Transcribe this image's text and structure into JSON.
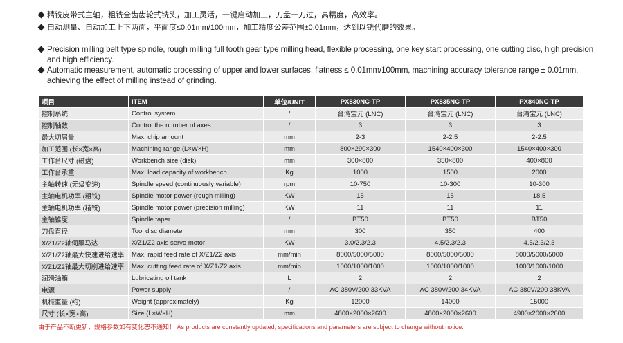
{
  "bullets_cn": [
    "精铣皮带式主轴，粗铣全齿齿轮式铣头，加工灵活，一键启动加工，刀盘一刀过，高精度，高效率。",
    "自动测量、自动加工上下两面，平面度≤0.01mm/100mm，加工精度公差范围±0.01mm，达到以铣代磨的效果。"
  ],
  "bullets_en": [
    "Precision milling belt type spindle, rough milling full tooth gear type milling head, flexible processing, one key start processing, one cutting disc, high precision and high efficiency.",
    "Automatic measurement, automatic processing of upper and lower surfaces, flatness ≤ 0.01mm/100mm, machining accuracy tolerance range ± 0.01mm, achieving the effect of milling instead of grinding."
  ],
  "table": {
    "header": [
      "项目",
      "ITEM",
      "单位/UNIT",
      "PX830NC-TP",
      "PX835NC-TP",
      "PX840NC-TP"
    ],
    "rows": [
      [
        "控制系统",
        "Control system",
        "/",
        "台湾宝元 (LNC)",
        "台湾宝元 (LNC)",
        "台湾宝元 (LNC)"
      ],
      [
        "控制轴数",
        "Control the number of axes",
        "/",
        "3",
        "3",
        "3"
      ],
      [
        "最大切屑量",
        "Max. chip amount",
        "mm",
        "2-3",
        "2-2.5",
        "2-2.5"
      ],
      [
        "加工范围 (长×宽×高)",
        "Machining range (L×W×H)",
        "mm",
        "800×290×300",
        "1540×400×300",
        "1540×400×300"
      ],
      [
        "工作台尺寸 (磁盘)",
        "Workbench size (disk)",
        "mm",
        "300×800",
        "350×800",
        "400×800"
      ],
      [
        "工作台承重",
        "Max. load capacity of workbench",
        "Kg",
        "1000",
        "1500",
        "2000"
      ],
      [
        "主轴转速 (无级变速)",
        "Spindle speed (continuously variable)",
        "rpm",
        "10-750",
        "10-300",
        "10-300"
      ],
      [
        "主轴电机功率 (粗铣)",
        "Spindle motor power (rough milling)",
        "KW",
        "15",
        "15",
        "18.5"
      ],
      [
        "主轴电机功率 (精铣)",
        "Spindle motor power (precision milling)",
        "KW",
        "11",
        "11",
        "11"
      ],
      [
        "主轴锥度",
        "Spindle taper",
        "/",
        "BT50",
        "BT50",
        "BT50"
      ],
      [
        "刀盘直径",
        "Tool disc diameter",
        "mm",
        "300",
        "350",
        "400"
      ],
      [
        "X/Z1/Z2轴伺服马达",
        "X/Z1/Z2 axis servo motor",
        "KW",
        "3.0/2.3/2.3",
        "4.5/2.3/2.3",
        "4.5/2.3/2.3"
      ],
      [
        "X/Z1/Z2轴最大快速进给速率",
        "Max. rapid feed rate of X/Z1/Z2 axis",
        "mm/min",
        "8000/5000/5000",
        "8000/5000/5000",
        "8000/5000/5000"
      ],
      [
        "X/Z1/Z2轴最大切削进给速率",
        "Max. cutting feed rate of X/Z1/Z2 axis",
        "mm/min",
        "1000/1000/1000",
        "1000/1000/1000",
        "1000/1000/1000"
      ],
      [
        "润滑油箱",
        "Lubricating oil tank",
        "L",
        "2",
        "2",
        "2"
      ],
      [
        "电源",
        "Power supply",
        "/",
        "AC 380V/200 33KVA",
        "AC 380V/200 34KVA",
        "AC 380V/200 38KVA"
      ],
      [
        "机械重量 (约)",
        "Weight (approximately)",
        "Kg",
        "12000",
        "14000",
        "15000"
      ],
      [
        "尺寸 (长×宽×高)",
        "Size (L×W×H)",
        "mm",
        "4800×2000×2600",
        "4800×2000×2600",
        "4900×2000×2600"
      ]
    ]
  },
  "footnote": "由于产品不断更新，规格参数如有变化恕不通知！ As products are constantly updated, specifications and parameters are subject to change without notice."
}
